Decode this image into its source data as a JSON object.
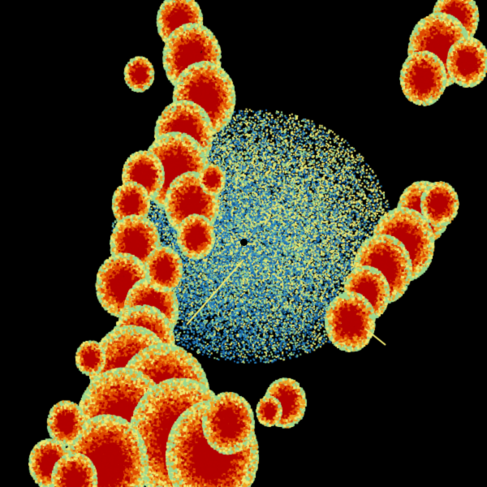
{
  "image": {
    "kind": "radar-reflectivity",
    "background": "#000000",
    "palette": {
      "core": "#b40000",
      "strong": "#e04a00",
      "moderate": "#f0a020",
      "light": "#f0e870",
      "weak": "#9ad890",
      "clear_air": "#2a8ac8",
      "clear_air_dark": "#1660a8"
    },
    "radar_site_marker": "black-dot"
  }
}
